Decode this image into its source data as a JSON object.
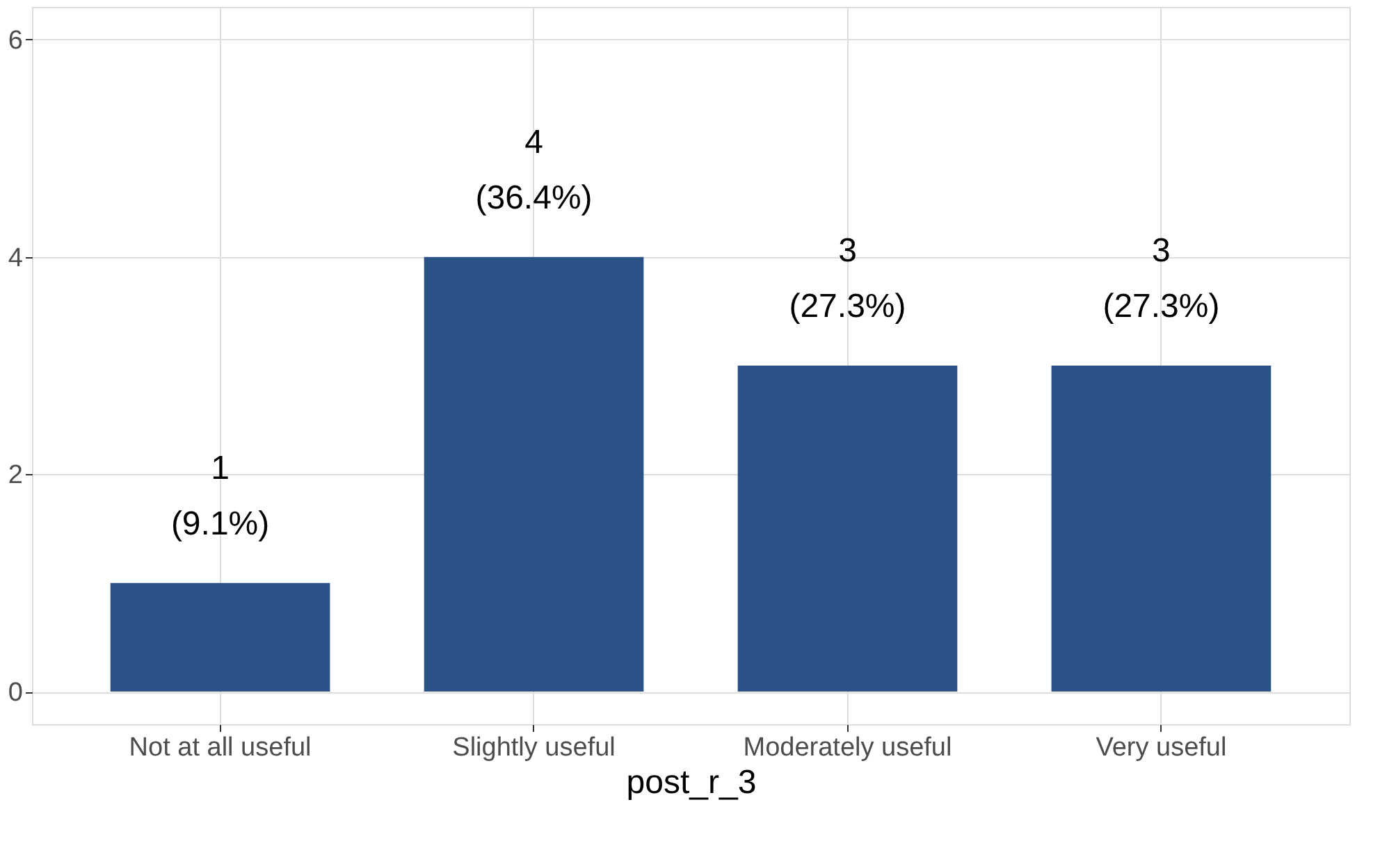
{
  "chart_data": {
    "type": "bar",
    "xlabel": "post_r_3",
    "categories": [
      "Not at all useful",
      "Slightly useful",
      "Moderately useful",
      "Very useful"
    ],
    "values": [
      1,
      4,
      3,
      3
    ],
    "color": "#2a5286",
    "value_labels": [
      "1\n(9.1%)",
      "4\n(36.4%)",
      "3\n(27.3%)",
      "3\n(27.3%)"
    ],
    "ylim": [
      -0.3,
      6.3
    ],
    "yticks": [
      0,
      2,
      4,
      6
    ],
    "grid": true
  }
}
